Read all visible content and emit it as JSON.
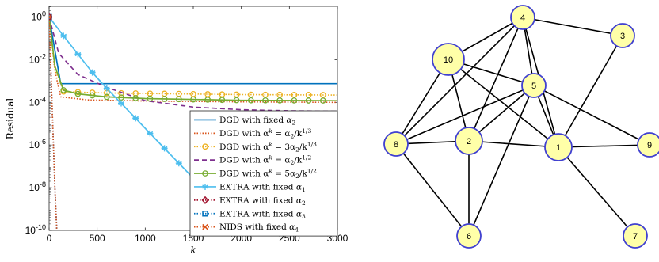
{
  "chart_data": {
    "type": "line",
    "xlabel": "k",
    "ylabel": "Residual",
    "xlim": [
      0,
      3000
    ],
    "ylim_log10": [
      -10,
      0.5
    ],
    "y_scale": "log",
    "x_ticks": [
      0,
      500,
      1000,
      1500,
      2000,
      2500,
      3000
    ],
    "y_ticks": [
      {
        "exp": 0,
        "base": "10",
        "label": "0"
      },
      {
        "exp": -2,
        "base": "10",
        "label": "-2"
      },
      {
        "exp": -4,
        "base": "10",
        "label": "-4"
      },
      {
        "exp": -6,
        "base": "10",
        "label": "-6"
      },
      {
        "exp": -8,
        "base": "10",
        "label": "-8"
      },
      {
        "exp": -10,
        "base": "10",
        "label": "-10"
      }
    ],
    "legend_position": "bottom-right",
    "series": [
      {
        "name": "DGD with fixed α₂",
        "color": "#0072BD",
        "style": "solid",
        "marker": "none",
        "points": [
          [
            0,
            1
          ],
          [
            120,
            0.00075
          ],
          [
            3000,
            0.00075
          ]
        ]
      },
      {
        "name": "DGD with αᵏ = α₂/k¹ᐟ³",
        "color": "#D95319",
        "style": "dotted",
        "marker": "none",
        "points": [
          [
            0,
            1
          ],
          [
            60,
            0.003
          ],
          [
            120,
            0.00018
          ],
          [
            400,
            0.00013
          ],
          [
            1000,
            0.000115
          ],
          [
            2000,
            0.000105
          ],
          [
            3000,
            0.0001
          ]
        ]
      },
      {
        "name": "DGD with αᵏ = 3α₂/k¹ᐟ³",
        "color": "#EDB120",
        "style": "dotted",
        "marker": "circle",
        "points": [
          [
            0,
            1
          ],
          [
            60,
            0.004
          ],
          [
            150,
            0.00032
          ],
          [
            500,
            0.00028
          ],
          [
            1000,
            0.00026
          ],
          [
            2000,
            0.00023
          ],
          [
            3000,
            0.00022
          ]
        ]
      },
      {
        "name": "DGD with αᵏ = α₂/k¹ᐟ²",
        "color": "#7E2F8E",
        "style": "dashed",
        "marker": "none",
        "points": [
          [
            0,
            1
          ],
          [
            100,
            0.02
          ],
          [
            300,
            0.002
          ],
          [
            600,
            0.0005
          ],
          [
            1000,
            0.00012
          ],
          [
            1500,
            6e-05
          ],
          [
            2000,
            4.5e-05
          ],
          [
            2500,
            4e-05
          ],
          [
            3000,
            3.8e-05
          ]
        ]
      },
      {
        "name": "DGD with αᵏ = 5α₂/k¹ᐟ²",
        "color": "#77AC30",
        "style": "solid",
        "marker": "circle",
        "points": [
          [
            0,
            1
          ],
          [
            60,
            0.005
          ],
          [
            150,
            0.00037
          ],
          [
            300,
            0.00025
          ],
          [
            600,
            0.00018
          ],
          [
            1000,
            0.00015
          ],
          [
            2000,
            0.000125
          ],
          [
            3000,
            0.00012
          ]
        ]
      },
      {
        "name": "EXTRA with fixed α₁",
        "color": "#4DBEEE",
        "style": "solid",
        "marker": "asterisk",
        "points": [
          [
            0,
            1
          ],
          [
            150,
            0.13
          ],
          [
            300,
            0.018
          ],
          [
            450,
            0.0025
          ],
          [
            600,
            0.00045
          ],
          [
            750,
            9e-05
          ],
          [
            900,
            1.8e-05
          ],
          [
            1050,
            3.5e-06
          ],
          [
            1200,
            7e-07
          ],
          [
            1350,
            1.4e-07
          ],
          [
            1500,
            2.8e-08
          ],
          [
            1650,
            5.6e-09
          ],
          [
            1800,
            1.1e-09
          ],
          [
            1950,
            2.2e-10
          ]
        ]
      },
      {
        "name": "EXTRA with fixed α₂",
        "color": "#A2142F",
        "style": "dotted",
        "marker": "diamond",
        "points": [
          [
            0,
            1
          ],
          [
            30,
            0.0001
          ],
          [
            60,
            1e-08
          ],
          [
            80,
            1e-10
          ]
        ]
      },
      {
        "name": "EXTRA with fixed α₃",
        "color": "#0072BD",
        "style": "dotted",
        "marker": "square",
        "points": [
          [
            0,
            1
          ],
          [
            30,
            0.0001
          ],
          [
            60,
            1e-08
          ],
          [
            80,
            1e-10
          ]
        ]
      },
      {
        "name": "NIDS with fixed α₄",
        "color": "#D95319",
        "style": "dotted",
        "marker": "cross",
        "points": [
          [
            0,
            1
          ],
          [
            30,
            0.0001
          ],
          [
            60,
            1e-08
          ],
          [
            80,
            1e-10
          ]
        ]
      }
    ],
    "legend_labels": [
      {
        "pre": "DGD with fixed ",
        "a": "α",
        "sub": "2",
        "post": ""
      },
      {
        "pre": "DGD with α",
        "sup1": "k",
        "mid": " = α",
        "sub": "2",
        "post": "/k",
        "sup2": "1/3"
      },
      {
        "pre": "DGD with α",
        "sup1": "k",
        "mid": " = 3α",
        "sub": "2",
        "post": "/k",
        "sup2": "1/3"
      },
      {
        "pre": "DGD with α",
        "sup1": "k",
        "mid": " = α",
        "sub": "2",
        "post": "/k",
        "sup2": "1/2"
      },
      {
        "pre": "DGD with α",
        "sup1": "k",
        "mid": " = 5α",
        "sub": "2",
        "post": "/k",
        "sup2": "1/2"
      },
      {
        "pre": "EXTRA with fixed ",
        "a": "α",
        "sub": "1",
        "post": ""
      },
      {
        "pre": "EXTRA with fixed ",
        "a": "α",
        "sub": "2",
        "post": ""
      },
      {
        "pre": "EXTRA with fixed ",
        "a": "α",
        "sub": "3",
        "post": ""
      },
      {
        "pre": "NIDS with fixed ",
        "a": "α",
        "sub": "4",
        "post": ""
      }
    ]
  },
  "graph": {
    "node_fill": "#FFFFA8",
    "node_stroke": "#4040D0",
    "nodes": [
      {
        "id": "1",
        "large": true
      },
      {
        "id": "2",
        "large": true
      },
      {
        "id": "3",
        "large": false
      },
      {
        "id": "4",
        "large": false
      },
      {
        "id": "5",
        "large": false
      },
      {
        "id": "6",
        "large": false
      },
      {
        "id": "7",
        "large": false
      },
      {
        "id": "8",
        "large": false
      },
      {
        "id": "9",
        "large": false
      },
      {
        "id": "10",
        "large": true
      }
    ],
    "edges": [
      [
        "4",
        "3"
      ],
      [
        "4",
        "10"
      ],
      [
        "4",
        "5"
      ],
      [
        "4",
        "2"
      ],
      [
        "4",
        "1"
      ],
      [
        "4",
        "8"
      ],
      [
        "3",
        "1"
      ],
      [
        "10",
        "5"
      ],
      [
        "10",
        "2"
      ],
      [
        "10",
        "1"
      ],
      [
        "10",
        "8"
      ],
      [
        "5",
        "2"
      ],
      [
        "5",
        "1"
      ],
      [
        "5",
        "8"
      ],
      [
        "5",
        "9"
      ],
      [
        "5",
        "6"
      ],
      [
        "8",
        "2"
      ],
      [
        "8",
        "6"
      ],
      [
        "2",
        "1"
      ],
      [
        "2",
        "6"
      ],
      [
        "1",
        "9"
      ],
      [
        "1",
        "7"
      ]
    ]
  }
}
